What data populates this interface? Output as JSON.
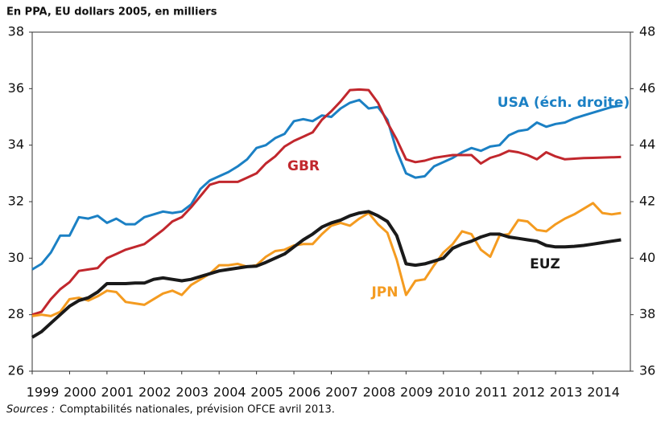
{
  "chart_data": {
    "type": "line",
    "title": "En PPA, EU dollars 2005, en milliers",
    "source_label": "Sources :",
    "source_text": "Comptabilités nationales, prévision OFCE avril 2013.",
    "x": [
      1999,
      1999.25,
      1999.5,
      1999.75,
      2000,
      2000.25,
      2000.5,
      2000.75,
      2001,
      2001.25,
      2001.5,
      2001.75,
      2002,
      2002.25,
      2002.5,
      2002.75,
      2003,
      2003.25,
      2003.5,
      2003.75,
      2004,
      2004.25,
      2004.5,
      2004.75,
      2005,
      2005.25,
      2005.5,
      2005.75,
      2006,
      2006.25,
      2006.5,
      2006.75,
      2007,
      2007.25,
      2007.5,
      2007.75,
      2008,
      2008.25,
      2008.5,
      2008.75,
      2009,
      2009.25,
      2009.5,
      2009.75,
      2010,
      2010.25,
      2010.5,
      2010.75,
      2011,
      2011.25,
      2011.5,
      2011.75,
      2012,
      2012.25,
      2012.5,
      2012.75,
      2013,
      2013.25,
      2013.5,
      2013.75,
      2014,
      2014.25,
      2014.5,
      2014.75
    ],
    "xlim": [
      1999,
      2015
    ],
    "xticks": [
      1999,
      2000,
      2001,
      2002,
      2003,
      2004,
      2005,
      2006,
      2007,
      2008,
      2009,
      2010,
      2011,
      2012,
      2013,
      2014
    ],
    "ylim": [
      26,
      38
    ],
    "yticks": [
      26,
      28,
      30,
      32,
      34,
      36,
      38
    ],
    "y2lim": [
      36,
      48
    ],
    "y2ticks": [
      36,
      38,
      40,
      42,
      44,
      46,
      48
    ],
    "series": [
      {
        "name": "USA (éch. droite)",
        "color": "#1b80c4",
        "axis": "y2",
        "values": [
          39.6,
          39.8,
          40.2,
          40.8,
          40.8,
          41.45,
          41.4,
          41.5,
          41.25,
          41.4,
          41.2,
          41.2,
          41.45,
          41.55,
          41.65,
          41.6,
          41.65,
          41.9,
          42.45,
          42.75,
          42.9,
          43.05,
          43.25,
          43.5,
          43.9,
          44.0,
          44.25,
          44.4,
          44.85,
          44.92,
          44.85,
          45.05,
          45.0,
          45.3,
          45.5,
          45.6,
          45.3,
          45.35,
          44.9,
          43.8,
          43.0,
          42.85,
          42.9,
          43.25,
          43.4,
          43.55,
          43.75,
          43.9,
          43.8,
          43.95,
          44.0,
          44.35,
          44.5,
          44.55,
          44.8,
          44.65,
          44.75,
          44.8,
          44.95,
          45.05,
          45.15,
          45.25,
          45.35,
          45.4
        ]
      },
      {
        "name": "GBR",
        "color": "#c1272d",
        "values": [
          28.0,
          28.1,
          28.55,
          28.9,
          29.15,
          29.55,
          29.6,
          29.65,
          30.0,
          30.15,
          30.3,
          30.4,
          30.5,
          30.75,
          31.0,
          31.3,
          31.45,
          31.8,
          32.2,
          32.6,
          32.7,
          32.7,
          32.7,
          32.85,
          33.0,
          33.35,
          33.6,
          33.95,
          34.15,
          34.3,
          34.45,
          34.9,
          35.2,
          35.55,
          35.95,
          35.97,
          35.95,
          35.5,
          34.8,
          34.2,
          33.5,
          33.4,
          33.45,
          33.55,
          33.6,
          33.65,
          33.65,
          33.65,
          33.35,
          33.55,
          33.65,
          33.8,
          33.75,
          33.65,
          33.5,
          33.75,
          33.6,
          33.5,
          33.52,
          33.54,
          33.55,
          33.56,
          33.57,
          33.58
        ]
      },
      {
        "name": "JPN",
        "color": "#f49b20",
        "values": [
          27.95,
          28.0,
          27.95,
          28.1,
          28.55,
          28.6,
          28.5,
          28.65,
          28.85,
          28.8,
          28.45,
          28.4,
          28.35,
          28.55,
          28.75,
          28.85,
          28.7,
          29.05,
          29.25,
          29.45,
          29.75,
          29.75,
          29.8,
          29.7,
          29.75,
          30.05,
          30.25,
          30.3,
          30.45,
          30.5,
          30.5,
          30.85,
          31.15,
          31.25,
          31.15,
          31.4,
          31.6,
          31.2,
          30.9,
          29.95,
          28.7,
          29.2,
          29.25,
          29.75,
          30.2,
          30.5,
          30.95,
          30.85,
          30.3,
          30.05,
          30.8,
          30.85,
          31.35,
          31.3,
          31.0,
          30.95,
          31.2,
          31.4,
          31.55,
          31.75,
          31.95,
          31.6,
          31.55,
          31.6
        ]
      },
      {
        "name": "EUZ",
        "color": "#1a1a1a",
        "values": [
          27.2,
          27.4,
          27.7,
          28.0,
          28.3,
          28.5,
          28.6,
          28.8,
          29.1,
          29.1,
          29.1,
          29.12,
          29.12,
          29.25,
          29.3,
          29.25,
          29.2,
          29.25,
          29.35,
          29.45,
          29.55,
          29.6,
          29.65,
          29.7,
          29.72,
          29.85,
          30.0,
          30.15,
          30.4,
          30.65,
          30.85,
          31.1,
          31.25,
          31.35,
          31.5,
          31.6,
          31.65,
          31.5,
          31.3,
          30.8,
          29.8,
          29.75,
          29.8,
          29.9,
          30.0,
          30.35,
          30.5,
          30.6,
          30.75,
          30.85,
          30.85,
          30.75,
          30.7,
          30.65,
          30.6,
          30.45,
          30.4,
          30.4,
          30.42,
          30.45,
          30.5,
          30.55,
          30.6,
          30.65
        ]
      }
    ]
  }
}
